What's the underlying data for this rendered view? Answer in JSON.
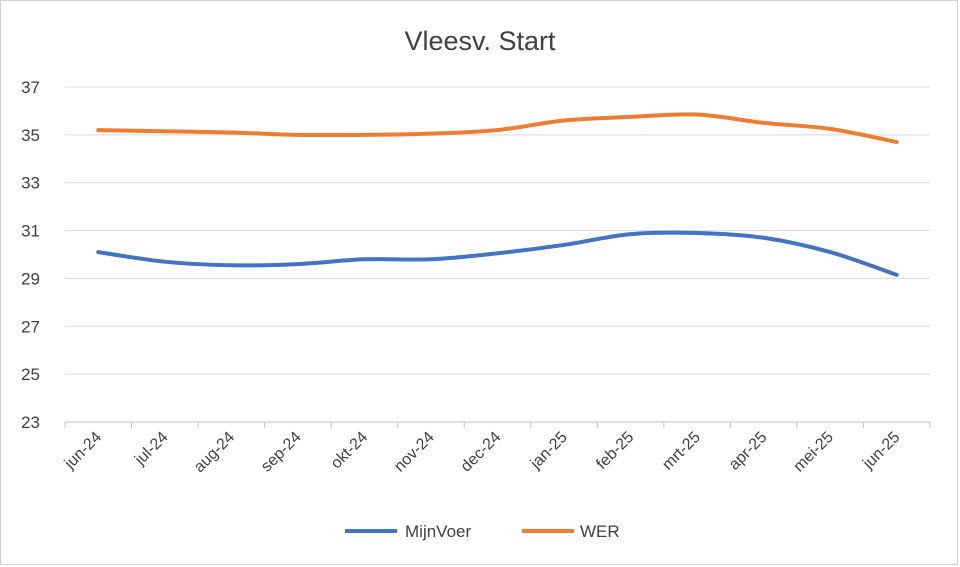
{
  "chart_data": {
    "type": "line",
    "title": "Vleesv. Start",
    "xlabel": "",
    "ylabel": "",
    "categories": [
      "jun-24",
      "jul-24",
      "aug-24",
      "sep-24",
      "okt-24",
      "nov-24",
      "dec-24",
      "jan-25",
      "feb-25",
      "mrt-25",
      "apr-25",
      "mei-25",
      "jun-25"
    ],
    "ylim": [
      23,
      37
    ],
    "yticks": [
      23,
      25,
      27,
      29,
      31,
      33,
      35,
      37
    ],
    "grid": true,
    "legend_position": "bottom",
    "series": [
      {
        "name": "MijnVoer",
        "color": "#4472c4",
        "values": [
          30.1,
          29.7,
          29.55,
          29.6,
          29.8,
          29.8,
          30.05,
          30.4,
          30.85,
          30.9,
          30.7,
          30.1,
          29.15
        ]
      },
      {
        "name": "WER",
        "color": "#ed7d31",
        "values": [
          35.2,
          35.15,
          35.1,
          35.0,
          35.0,
          35.05,
          35.2,
          35.6,
          35.75,
          35.85,
          35.5,
          35.25,
          34.7
        ]
      }
    ]
  }
}
